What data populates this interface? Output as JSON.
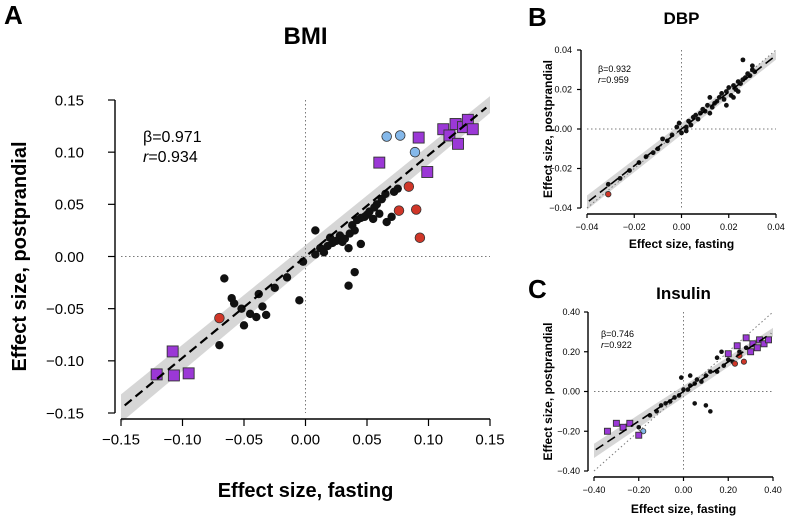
{
  "colors": {
    "black": "#111111",
    "blue": "#84b8ea",
    "red": "#d03628",
    "purple": "#9b38d6",
    "band": "#cfcfcf"
  },
  "chart_data": [
    {
      "panel": "A",
      "type": "scatter",
      "title": "BMI",
      "xlabel": "Effect size, fasting",
      "ylabel": "Effect size, postprandial",
      "xlim": [
        -0.15,
        0.15
      ],
      "ylim": [
        -0.15,
        0.15
      ],
      "xticks": [
        -0.15,
        -0.1,
        -0.05,
        0.0,
        0.05,
        0.1,
        0.15
      ],
      "yticks": [
        -0.15,
        -0.1,
        -0.05,
        0.0,
        0.05,
        0.1,
        0.15
      ],
      "xtick_labels": [
        "−0.15",
        "−0.10",
        "−0.05",
        "0.00",
        "0.05",
        "0.10",
        "0.15"
      ],
      "ytick_labels": [
        "−0.15",
        "−0.10",
        "−0.05",
        "0.00",
        "0.05",
        "0.10",
        "0.15"
      ],
      "annotation": {
        "beta": "β=0.971",
        "r_label": "r",
        "r_value": "=0.934"
      },
      "fit": {
        "slope": 0.971,
        "intercept": 0.0
      },
      "series": [
        {
          "marker": "circle",
          "color": "black",
          "points": [
            [
              -0.066,
              -0.021
            ],
            [
              -0.06,
              -0.04
            ],
            [
              -0.058,
              -0.045
            ],
            [
              -0.052,
              -0.05
            ],
            [
              -0.05,
              -0.066
            ],
            [
              -0.045,
              -0.055
            ],
            [
              -0.04,
              -0.058
            ],
            [
              -0.035,
              -0.048
            ],
            [
              -0.032,
              -0.056
            ],
            [
              -0.038,
              -0.036
            ],
            [
              -0.025,
              -0.03
            ],
            [
              -0.015,
              -0.02
            ],
            [
              -0.005,
              -0.042
            ],
            [
              -0.002,
              -0.005
            ],
            [
              0.008,
              0.002
            ],
            [
              0.012,
              0.008
            ],
            [
              0.015,
              0.004
            ],
            [
              0.018,
              0.01
            ],
            [
              0.02,
              0.018
            ],
            [
              0.022,
              0.013
            ],
            [
              0.025,
              0.015
            ],
            [
              0.028,
              0.02
            ],
            [
              0.03,
              0.014
            ],
            [
              0.032,
              0.017
            ],
            [
              0.035,
              0.008
            ],
            [
              0.036,
              0.022
            ],
            [
              0.038,
              0.03
            ],
            [
              0.04,
              0.025
            ],
            [
              0.042,
              0.035
            ],
            [
              0.045,
              0.037
            ],
            [
              0.048,
              0.038
            ],
            [
              0.05,
              0.04
            ],
            [
              0.052,
              0.043
            ],
            [
              0.055,
              0.036
            ],
            [
              0.058,
              0.05
            ],
            [
              0.06,
              0.041
            ],
            [
              0.062,
              0.055
            ],
            [
              0.065,
              0.06
            ],
            [
              0.07,
              0.038
            ],
            [
              0.072,
              0.062
            ],
            [
              0.075,
              0.065
            ],
            [
              0.035,
              -0.028
            ],
            [
              0.04,
              -0.015
            ],
            [
              0.045,
              0.012
            ],
            [
              0.008,
              0.025
            ],
            [
              0.056,
              0.047
            ],
            [
              0.066,
              0.033
            ],
            [
              -0.07,
              -0.085
            ]
          ]
        },
        {
          "marker": "circle",
          "color": "blue",
          "points": [
            [
              0.066,
              0.115
            ],
            [
              0.077,
              0.116
            ],
            [
              0.089,
              0.1
            ]
          ]
        },
        {
          "marker": "circle",
          "color": "red",
          "points": [
            [
              -0.07,
              -0.059
            ],
            [
              0.076,
              0.044
            ],
            [
              0.084,
              0.067
            ],
            [
              0.09,
              0.045
            ],
            [
              0.093,
              0.018
            ]
          ]
        },
        {
          "marker": "square",
          "color": "purple",
          "points": [
            [
              -0.121,
              -0.113
            ],
            [
              -0.108,
              -0.091
            ],
            [
              -0.107,
              -0.114
            ],
            [
              -0.095,
              -0.112
            ],
            [
              0.06,
              0.09
            ],
            [
              0.092,
              0.114
            ],
            [
              0.099,
              0.081
            ],
            [
              0.112,
              0.122
            ],
            [
              0.117,
              0.116
            ],
            [
              0.122,
              0.127
            ],
            [
              0.124,
              0.108
            ],
            [
              0.128,
              0.124
            ],
            [
              0.132,
              0.131
            ],
            [
              0.136,
              0.122
            ]
          ]
        }
      ]
    },
    {
      "panel": "B",
      "type": "scatter",
      "title": "DBP",
      "xlabel": "Effect size, fasting",
      "ylabel": "Effect size, postprandial",
      "xlim": [
        -0.04,
        0.04
      ],
      "ylim": [
        -0.04,
        0.04
      ],
      "xticks": [
        -0.04,
        -0.02,
        0.0,
        0.02,
        0.04
      ],
      "yticks": [
        -0.04,
        -0.02,
        0.0,
        0.02,
        0.04
      ],
      "xtick_labels": [
        "−0.04",
        "−0.02",
        "0.00",
        "0.02",
        "0.04"
      ],
      "ytick_labels": [
        "−0.04",
        "−0.02",
        "0.00",
        "0.02",
        "0.04"
      ],
      "annotation": {
        "beta": "β=0.932",
        "r_label": "r",
        "r_value": "=0.959"
      },
      "fit": {
        "slope": 0.932,
        "intercept": 0.0
      },
      "series": [
        {
          "marker": "circle",
          "color": "black",
          "points": [
            [
              -0.031,
              -0.028
            ],
            [
              -0.026,
              -0.025
            ],
            [
              -0.022,
              -0.021
            ],
            [
              -0.018,
              -0.017
            ],
            [
              -0.015,
              -0.014
            ],
            [
              -0.012,
              -0.012
            ],
            [
              -0.01,
              -0.01
            ],
            [
              -0.008,
              -0.005
            ],
            [
              -0.006,
              -0.006
            ],
            [
              -0.004,
              -0.003
            ],
            [
              -0.002,
              0.001
            ],
            [
              0.0,
              -0.002
            ],
            [
              0.002,
              0.001
            ],
            [
              0.003,
              0.004
            ],
            [
              0.004,
              0.002
            ],
            [
              0.005,
              0.006
            ],
            [
              0.006,
              0.007
            ],
            [
              0.007,
              0.005
            ],
            [
              0.008,
              0.008
            ],
            [
              0.009,
              0.01
            ],
            [
              0.01,
              0.009
            ],
            [
              0.011,
              0.012
            ],
            [
              0.012,
              0.008
            ],
            [
              0.013,
              0.011
            ],
            [
              0.014,
              0.013
            ],
            [
              0.015,
              0.014
            ],
            [
              0.016,
              0.016
            ],
            [
              0.017,
              0.018
            ],
            [
              0.018,
              0.015
            ],
            [
              0.019,
              0.019
            ],
            [
              0.02,
              0.021
            ],
            [
              0.021,
              0.017
            ],
            [
              0.022,
              0.022
            ],
            [
              0.023,
              0.02
            ],
            [
              0.024,
              0.024
            ],
            [
              0.025,
              0.023
            ],
            [
              0.026,
              0.025
            ],
            [
              0.027,
              0.026
            ],
            [
              0.028,
              0.028
            ],
            [
              0.029,
              0.027
            ],
            [
              0.03,
              0.03
            ],
            [
              0.031,
              0.029
            ],
            [
              0.026,
              0.035
            ],
            [
              0.03,
              0.032
            ],
            [
              0.022,
              0.016
            ],
            [
              0.019,
              0.012
            ],
            [
              0.012,
              0.016
            ],
            [
              -0.001,
              0.003
            ],
            [
              0.002,
              -0.001
            ],
            [
              0.024,
              0.019
            ]
          ]
        },
        {
          "marker": "circle",
          "color": "red",
          "points": [
            [
              -0.031,
              -0.033
            ]
          ]
        }
      ]
    },
    {
      "panel": "C",
      "type": "scatter",
      "title": "Insulin",
      "xlabel": "Effect size, fasting",
      "ylabel": "Effect size, postprandial",
      "xlim": [
        -0.4,
        0.4
      ],
      "ylim": [
        -0.4,
        0.4
      ],
      "xticks": [
        -0.4,
        -0.2,
        0.0,
        0.2,
        0.4
      ],
      "yticks": [
        -0.4,
        -0.2,
        0.0,
        0.2,
        0.4
      ],
      "xtick_labels": [
        "−0.40",
        "−0.20",
        "0.00",
        "0.20",
        "0.40"
      ],
      "ytick_labels": [
        "−0.40",
        "−0.20",
        "0.00",
        "0.20",
        "0.40"
      ],
      "annotation": {
        "beta": "β=0.746",
        "r_label": "r",
        "r_value": "=0.922"
      },
      "fit": {
        "slope": 0.746,
        "intercept": 0.0
      },
      "series": [
        {
          "marker": "circle",
          "color": "black",
          "points": [
            [
              -0.2,
              -0.18
            ],
            [
              -0.15,
              -0.12
            ],
            [
              -0.12,
              -0.1
            ],
            [
              -0.1,
              -0.07
            ],
            [
              -0.08,
              -0.06
            ],
            [
              -0.06,
              -0.05
            ],
            [
              -0.04,
              -0.03
            ],
            [
              -0.02,
              -0.02
            ],
            [
              0.0,
              0.01
            ],
            [
              0.02,
              0.01
            ],
            [
              0.03,
              0.03
            ],
            [
              0.05,
              0.04
            ],
            [
              0.06,
              0.06
            ],
            [
              0.08,
              0.05
            ],
            [
              0.1,
              0.08
            ],
            [
              0.12,
              0.1
            ],
            [
              0.15,
              0.1
            ],
            [
              0.18,
              0.13
            ],
            [
              0.2,
              0.16
            ],
            [
              0.22,
              0.15
            ],
            [
              0.05,
              -0.06
            ],
            [
              0.1,
              -0.07
            ],
            [
              0.12,
              -0.1
            ],
            [
              0.03,
              0.08
            ],
            [
              0.25,
              0.2
            ],
            [
              0.28,
              0.22
            ],
            [
              0.15,
              0.17
            ],
            [
              -0.01,
              0.07
            ],
            [
              0.17,
              0.2
            ]
          ]
        },
        {
          "marker": "circle",
          "color": "blue",
          "points": [
            [
              -0.18,
              -0.2
            ]
          ]
        },
        {
          "marker": "circle",
          "color": "red",
          "points": [
            [
              0.23,
              0.14
            ],
            [
              0.25,
              0.18
            ],
            [
              0.27,
              0.15
            ]
          ]
        },
        {
          "marker": "square",
          "color": "purple",
          "points": [
            [
              -0.34,
              -0.2
            ],
            [
              -0.3,
              -0.16
            ],
            [
              -0.27,
              -0.18
            ],
            [
              -0.24,
              -0.16
            ],
            [
              -0.2,
              -0.22
            ],
            [
              0.2,
              0.19
            ],
            [
              0.24,
              0.23
            ],
            [
              0.28,
              0.27
            ],
            [
              0.31,
              0.24
            ],
            [
              0.33,
              0.22
            ],
            [
              0.34,
              0.26
            ],
            [
              0.36,
              0.24
            ],
            [
              0.38,
              0.26
            ],
            [
              0.3,
              0.2
            ]
          ]
        }
      ]
    }
  ]
}
